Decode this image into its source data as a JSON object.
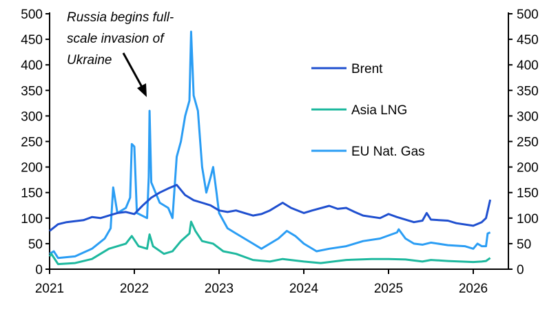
{
  "chart_data": {
    "type": "line",
    "title": "",
    "xlabel": "",
    "ylabel": "",
    "xlim": [
      2021,
      2026.35
    ],
    "ylim": [
      0,
      500
    ],
    "y2lim": [
      0,
      500
    ],
    "x_ticks": [
      "2021",
      "2022",
      "2023",
      "2024",
      "2025",
      "2026"
    ],
    "y_ticks": [
      "0",
      "50",
      "100",
      "150",
      "200",
      "250",
      "300",
      "350",
      "400",
      "450",
      "500"
    ],
    "grid": false,
    "legend_placement": "right",
    "annotation": {
      "text_lines": [
        "Russia begins full-",
        "scale invasion of",
        "Ukraine"
      ],
      "points_to": {
        "x": 2022.15,
        "y": 340
      }
    },
    "series": [
      {
        "name": "Brent",
        "color": "#1f4fcf",
        "x": [
          2021.0,
          2021.1,
          2021.2,
          2021.4,
          2021.5,
          2021.6,
          2021.7,
          2021.8,
          2021.9,
          2022.0,
          2022.1,
          2022.2,
          2022.3,
          2022.4,
          2022.5,
          2022.6,
          2022.7,
          2022.8,
          2022.9,
          2023.0,
          2023.1,
          2023.2,
          2023.3,
          2023.4,
          2023.5,
          2023.6,
          2023.75,
          2023.85,
          2024.0,
          2024.1,
          2024.3,
          2024.4,
          2024.5,
          2024.6,
          2024.7,
          2024.9,
          2025.0,
          2025.1,
          2025.3,
          2025.4,
          2025.45,
          2025.5,
          2025.7,
          2025.8,
          2026.0,
          2026.1,
          2026.15,
          2026.2
        ],
        "y": [
          75,
          88,
          92,
          96,
          102,
          100,
          105,
          110,
          112,
          108,
          125,
          140,
          150,
          158,
          165,
          145,
          135,
          130,
          125,
          115,
          112,
          115,
          110,
          105,
          108,
          115,
          130,
          120,
          110,
          115,
          124,
          118,
          120,
          112,
          105,
          100,
          108,
          102,
          92,
          95,
          110,
          97,
          95,
          90,
          85,
          92,
          100,
          136
        ]
      },
      {
        "name": "Asia LNG",
        "color": "#1db89e",
        "x": [
          2021.0,
          2021.02,
          2021.1,
          2021.3,
          2021.5,
          2021.7,
          2021.9,
          2021.97,
          2022.05,
          2022.15,
          2022.18,
          2022.22,
          2022.35,
          2022.45,
          2022.55,
          2022.65,
          2022.67,
          2022.72,
          2022.8,
          2022.93,
          2023.05,
          2023.2,
          2023.4,
          2023.6,
          2023.75,
          2024.0,
          2024.2,
          2024.5,
          2024.8,
          2025.0,
          2025.2,
          2025.4,
          2025.5,
          2025.7,
          2026.0,
          2026.1,
          2026.15,
          2026.2
        ],
        "y": [
          25,
          30,
          10,
          12,
          20,
          40,
          50,
          65,
          45,
          40,
          68,
          45,
          30,
          35,
          55,
          70,
          93,
          75,
          55,
          50,
          35,
          30,
          18,
          15,
          20,
          15,
          12,
          18,
          20,
          20,
          19,
          15,
          18,
          16,
          14,
          15,
          16,
          22
        ]
      },
      {
        "name": "EU Nat. Gas",
        "color": "#2a9df4",
        "x": [
          2021.0,
          2021.05,
          2021.1,
          2021.3,
          2021.5,
          2021.65,
          2021.72,
          2021.75,
          2021.8,
          2021.9,
          2021.95,
          2021.97,
          2022.0,
          2022.03,
          2022.15,
          2022.17,
          2022.18,
          2022.2,
          2022.3,
          2022.4,
          2022.45,
          2022.5,
          2022.55,
          2022.6,
          2022.65,
          2022.67,
          2022.7,
          2022.75,
          2022.8,
          2022.85,
          2022.9,
          2022.93,
          2022.97,
          2023.0,
          2023.1,
          2023.2,
          2023.4,
          2023.5,
          2023.7,
          2023.8,
          2023.9,
          2024.0,
          2024.15,
          2024.3,
          2024.5,
          2024.7,
          2024.9,
          2025.1,
          2025.12,
          2025.2,
          2025.3,
          2025.4,
          2025.5,
          2025.7,
          2025.9,
          2026.0,
          2026.05,
          2026.1,
          2026.15,
          2026.17,
          2026.2
        ],
        "y": [
          30,
          35,
          22,
          25,
          40,
          60,
          80,
          160,
          110,
          120,
          140,
          245,
          240,
          110,
          100,
          180,
          310,
          170,
          130,
          120,
          100,
          220,
          250,
          300,
          330,
          465,
          340,
          310,
          200,
          150,
          180,
          200,
          150,
          110,
          80,
          70,
          50,
          40,
          60,
          75,
          65,
          50,
          35,
          40,
          45,
          55,
          60,
          72,
          78,
          60,
          50,
          48,
          52,
          47,
          45,
          40,
          50,
          45,
          45,
          70,
          72
        ]
      }
    ]
  }
}
